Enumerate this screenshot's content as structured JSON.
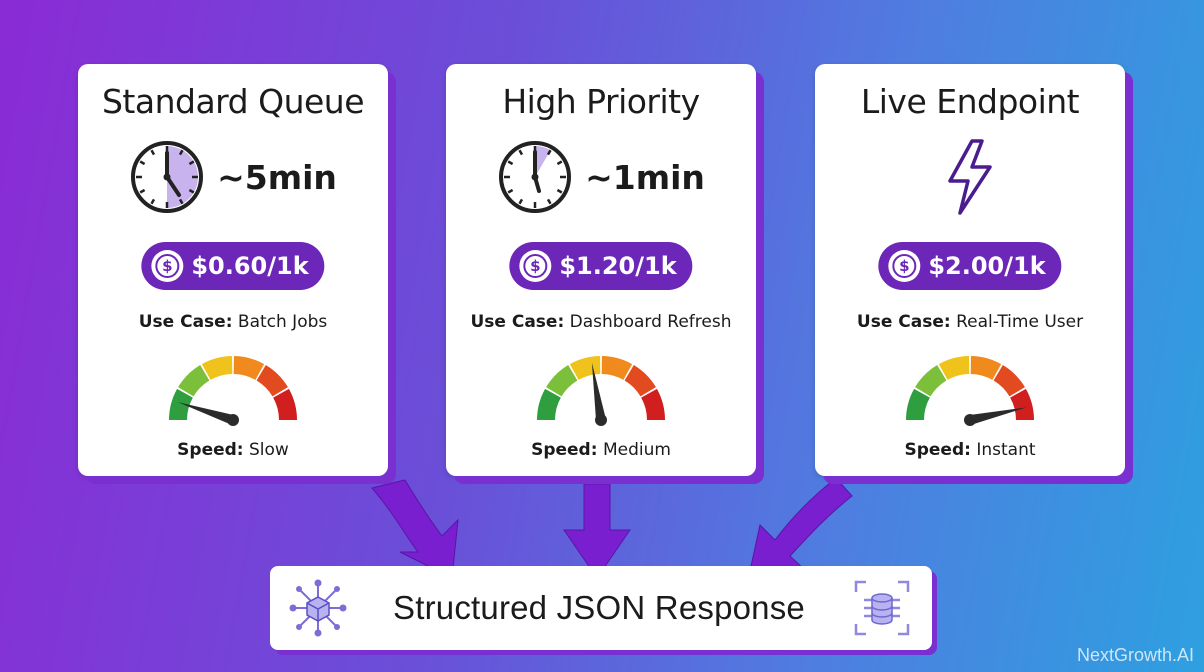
{
  "cards": [
    {
      "title": "Standard Queue",
      "time": "~5min",
      "icon": "clock-icon",
      "price": "$0.60/1k",
      "use_case_label": "Use Case:",
      "use_case": "Batch Jobs",
      "speed_label": "Speed:",
      "speed": "Slow",
      "speed_level": 0.1
    },
    {
      "title": "High Priority",
      "time": "~1min",
      "icon": "clock-icon",
      "price": "$1.20/1k",
      "use_case_label": "Use Case:",
      "use_case": "Dashboard Refresh",
      "speed_label": "Speed:",
      "speed": "Medium",
      "speed_level": 0.45
    },
    {
      "title": "Live Endpoint",
      "time": "",
      "icon": "lightning-icon",
      "price": "$2.00/1k",
      "use_case_label": "Use Case:",
      "use_case": "Real-Time User",
      "speed_label": "Speed:",
      "speed": "Instant",
      "speed_level": 0.93
    }
  ],
  "response": {
    "label": "Structured JSON Response"
  },
  "watermark": "NextGrowth.AI",
  "colors": {
    "accent": "#6c26b8",
    "shadow": "#7a2fd0",
    "gauge": [
      "#2e9e3e",
      "#7cbf3a",
      "#f0c21c",
      "#f08a1c",
      "#e24a1f",
      "#d11f1f"
    ]
  }
}
